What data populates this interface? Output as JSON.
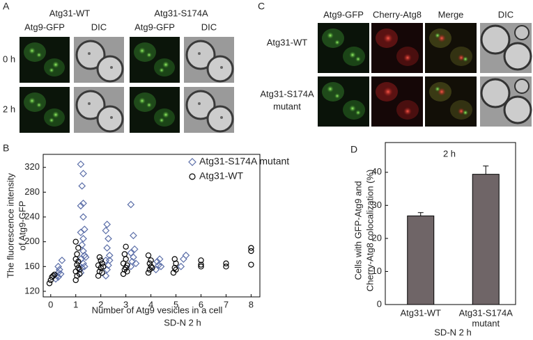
{
  "panel_a": {
    "label": "A",
    "groups": [
      "Atg31-WT",
      "Atg31-S174A"
    ],
    "columns": [
      "Atg9-GFP",
      "DIC"
    ],
    "rows": [
      "0 h",
      "2 h"
    ]
  },
  "panel_c": {
    "label": "C",
    "columns": [
      "Atg9-GFP",
      "Cherry-Atg8",
      "Merge",
      "DIC"
    ],
    "rows": [
      [
        "Atg31-WT"
      ],
      [
        "Atg31-S174A",
        "mutant"
      ]
    ]
  },
  "chart_data": [
    {
      "type": "scatter",
      "panel_label": "B",
      "ylabel": [
        "The fluorescence intensity",
        "of Atg9-GFP"
      ],
      "xlabel": "Number of Atg9 vesicles in a cell",
      "subtitle": "SD-N  2 h",
      "xlim": [
        -0.3,
        8.35
      ],
      "xticks": [
        0,
        1,
        2,
        3,
        4,
        5,
        6,
        7,
        8
      ],
      "ylim": [
        111,
        341
      ],
      "yticks": [
        120,
        160,
        200,
        240,
        280,
        320
      ],
      "series": [
        {
          "name": "Atg31-S174A mutant",
          "color": "#5b6ea8",
          "marker": "diamond",
          "x": [
            0.2,
            0.25,
            0.3,
            0.35,
            0.3,
            0.4,
            0.45,
            0.3,
            1.2,
            1.25,
            1.3,
            1.2,
            1.35,
            1.3,
            1.25,
            1.3,
            1.2,
            1.35,
            1.3,
            1.2,
            1.3,
            1.25,
            1.3,
            1.2,
            1.4,
            1.35,
            2.2,
            2.25,
            2.3,
            2.2,
            2.35,
            2.25,
            2.3,
            2.2,
            2.25,
            2.35,
            3.2,
            3.25,
            3.3,
            3.2,
            3.35,
            3.3,
            3.2,
            3.4,
            4.2,
            4.3,
            4.25,
            4.35,
            4.4,
            5.2,
            5.3,
            5.4
          ],
          "values": [
            140,
            145,
            150,
            155,
            160,
            148,
            170,
            143,
            150,
            158,
            165,
            172,
            178,
            185,
            195,
            205,
            215,
            220,
            240,
            258,
            262,
            290,
            310,
            325,
            175,
            160,
            145,
            155,
            162,
            170,
            178,
            190,
            205,
            218,
            228,
            170,
            160,
            168,
            175,
            182,
            188,
            210,
            260,
            165,
            155,
            162,
            168,
            172,
            160,
            160,
            172,
            178
          ]
        },
        {
          "name": "Atg31-WT",
          "color": "#000000",
          "marker": "circle",
          "x": [
            -0.05,
            0,
            0.05,
            0.1,
            0.15,
            1.0,
            1.05,
            1.0,
            1.1,
            1.05,
            1.1,
            1.0,
            1.05,
            1.1,
            1.0,
            1.15,
            1.15,
            1.9,
            1.95,
            2.0,
            1.9,
            2.05,
            2.0,
            1.95,
            2.1,
            2.05,
            2.9,
            2.95,
            3.0,
            3.05,
            2.9,
            3.0,
            2.95,
            3.0,
            3.05,
            3.9,
            3.95,
            4.0,
            3.95,
            4.0,
            3.9,
            4.05,
            4.9,
            4.95,
            5.0,
            4.95,
            5.0,
            6.0,
            6.0,
            6.0,
            7.0,
            7.0,
            8.0,
            8.0,
            8.0
          ],
          "values": [
            133,
            138,
            143,
            145,
            147,
            138,
            145,
            152,
            158,
            163,
            168,
            172,
            180,
            190,
            200,
            155,
            148,
            145,
            152,
            158,
            162,
            165,
            170,
            175,
            160,
            150,
            148,
            155,
            158,
            162,
            165,
            172,
            180,
            192,
            152,
            150,
            155,
            160,
            165,
            170,
            178,
            158,
            150,
            158,
            165,
            172,
            155,
            160,
            163,
            170,
            160,
            165,
            163,
            185,
            190
          ]
        }
      ]
    },
    {
      "type": "bar",
      "panel_label": "D",
      "title": "2 h",
      "ylabel": [
        "Cells with GFP-Atg9 and",
        "Cherry-Atg8 colocalization (%)"
      ],
      "xlabel": "SD-N 2 h",
      "categories": [
        [
          "Atg31-WT"
        ],
        [
          "Atg31-S174A",
          "mutant"
        ]
      ],
      "values": [
        26.8,
        39.4
      ],
      "errors": [
        1.0,
        2.5
      ],
      "color": "#6f6567",
      "ylim": [
        0,
        49
      ],
      "yticks": [
        0,
        10,
        20,
        30,
        40
      ]
    }
  ]
}
